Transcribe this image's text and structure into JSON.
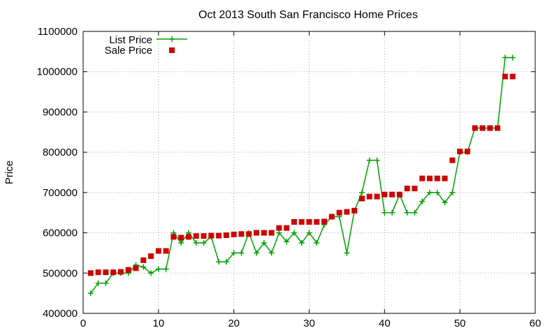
{
  "chart_data": {
    "type": "line",
    "title": "Oct 2013 South San Francisco Home Prices",
    "xlabel": "",
    "ylabel": "Price",
    "xlim": [
      0,
      60
    ],
    "ylim": [
      400000,
      1100000
    ],
    "x_ticks": [
      0,
      10,
      20,
      30,
      40,
      50,
      60
    ],
    "y_ticks": [
      400000,
      500000,
      600000,
      700000,
      800000,
      900000,
      1000000,
      1100000
    ],
    "grid": true,
    "legend_position": "top-left",
    "series": [
      {
        "name": "List Price",
        "style": "line+cross",
        "color": "#00a000",
        "x": [
          1,
          2,
          3,
          4,
          5,
          6,
          7,
          8,
          9,
          10,
          11,
          12,
          13,
          14,
          15,
          16,
          17,
          18,
          19,
          20,
          21,
          22,
          23,
          24,
          25,
          26,
          27,
          28,
          29,
          30,
          31,
          32,
          33,
          34,
          35,
          36,
          37,
          38,
          39,
          40,
          41,
          42,
          43,
          44,
          45,
          46,
          47,
          48,
          49,
          50,
          51,
          52,
          53,
          54,
          55,
          56,
          57
        ],
        "values": [
          450000,
          475000,
          475000,
          500000,
          500000,
          500000,
          520000,
          515000,
          500000,
          510000,
          510000,
          600000,
          575000,
          600000,
          575000,
          575000,
          590000,
          528000,
          528000,
          550000,
          550000,
          600000,
          550000,
          575000,
          550000,
          600000,
          578000,
          600000,
          575000,
          600000,
          575000,
          620000,
          640000,
          640000,
          550000,
          655000,
          700000,
          780000,
          780000,
          650000,
          650000,
          695000,
          650000,
          650000,
          678000,
          700000,
          700000,
          675000,
          700000,
          800000,
          800000,
          860000,
          860000,
          860000,
          860000,
          1035000,
          1035000
        ]
      },
      {
        "name": "Sale Price",
        "style": "square-marker",
        "color": "#cc0000",
        "x": [
          1,
          2,
          3,
          4,
          5,
          6,
          7,
          8,
          9,
          10,
          11,
          12,
          13,
          14,
          15,
          16,
          17,
          18,
          19,
          20,
          21,
          22,
          23,
          24,
          25,
          26,
          27,
          28,
          29,
          30,
          31,
          32,
          33,
          34,
          35,
          36,
          37,
          38,
          39,
          40,
          41,
          42,
          43,
          44,
          45,
          46,
          47,
          48,
          49,
          50,
          51,
          52,
          53,
          54,
          55,
          56,
          57
        ],
        "values": [
          500000,
          502000,
          502000,
          502000,
          503000,
          508000,
          512000,
          532000,
          542000,
          555000,
          555000,
          590000,
          588000,
          590000,
          592000,
          592000,
          593000,
          593000,
          594000,
          596000,
          597000,
          597000,
          600000,
          600000,
          600000,
          612000,
          612000,
          627000,
          627000,
          627000,
          627000,
          628000,
          640000,
          650000,
          652000,
          655000,
          685000,
          690000,
          690000,
          695000,
          695000,
          695000,
          710000,
          710000,
          735000,
          735000,
          735000,
          735000,
          780000,
          802000,
          802000,
          860000,
          860000,
          860000,
          860000,
          988000,
          988000
        ]
      }
    ]
  }
}
